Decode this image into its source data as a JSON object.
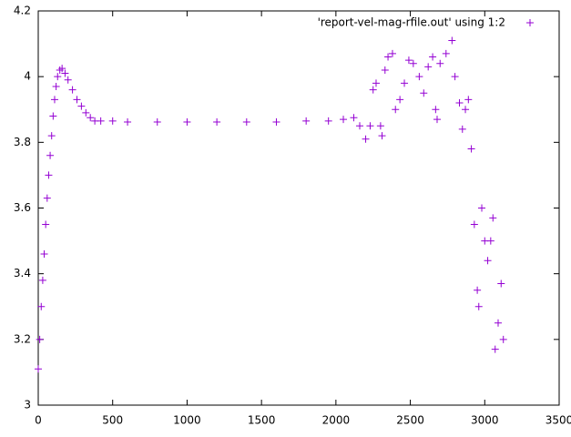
{
  "chart_data": {
    "type": "scatter",
    "marker": "plus",
    "legend": "'report-vel-mag-rfile.out' using 1:2",
    "legend_position": "top-right",
    "color": "#9400d3",
    "x": [
      0,
      10,
      20,
      30,
      40,
      50,
      60,
      70,
      80,
      90,
      100,
      110,
      120,
      130,
      145,
      160,
      180,
      200,
      230,
      260,
      290,
      320,
      350,
      380,
      420,
      500,
      600,
      800,
      1000,
      1200,
      1400,
      1600,
      1800,
      1950,
      2050,
      2120,
      2160,
      2200,
      2230,
      2250,
      2270,
      2300,
      2310,
      2330,
      2350,
      2380,
      2400,
      2430,
      2460,
      2490,
      2520,
      2560,
      2590,
      2620,
      2650,
      2670,
      2680,
      2700,
      2740,
      2780,
      2800,
      2830,
      2850,
      2870,
      2890,
      2910,
      2930,
      2950,
      2960,
      2980,
      3000,
      3020,
      3040,
      3055,
      3070,
      3090,
      3110,
      3125
    ],
    "values": [
      3.11,
      3.2,
      3.3,
      3.38,
      3.46,
      3.55,
      3.63,
      3.7,
      3.76,
      3.82,
      3.88,
      3.93,
      3.97,
      4.0,
      4.02,
      4.025,
      4.01,
      3.99,
      3.96,
      3.93,
      3.91,
      3.89,
      3.875,
      3.865,
      3.865,
      3.865,
      3.862,
      3.862,
      3.862,
      3.862,
      3.862,
      3.862,
      3.865,
      3.865,
      3.87,
      3.875,
      3.85,
      3.81,
      3.85,
      3.96,
      3.98,
      3.85,
      3.82,
      4.02,
      4.06,
      4.07,
      3.9,
      3.93,
      3.98,
      4.05,
      4.04,
      4.0,
      3.95,
      4.03,
      4.06,
      3.9,
      3.87,
      4.04,
      4.07,
      4.11,
      4.0,
      3.92,
      3.84,
      3.9,
      3.93,
      3.78,
      3.55,
      3.35,
      3.3,
      3.6,
      3.5,
      3.44,
      3.5,
      3.57,
      3.17,
      3.25,
      3.37,
      3.2
    ],
    "xlim": [
      0,
      3500
    ],
    "xticks": [
      0,
      500,
      1000,
      1500,
      2000,
      2500,
      3000,
      3500
    ],
    "ylim": [
      3,
      4.2
    ],
    "yticks": [
      {
        "value": 3,
        "label": "3"
      },
      3.2,
      3.4,
      3.6,
      3.8,
      {
        "value": 4,
        "label": "4"
      },
      4.2
    ]
  }
}
